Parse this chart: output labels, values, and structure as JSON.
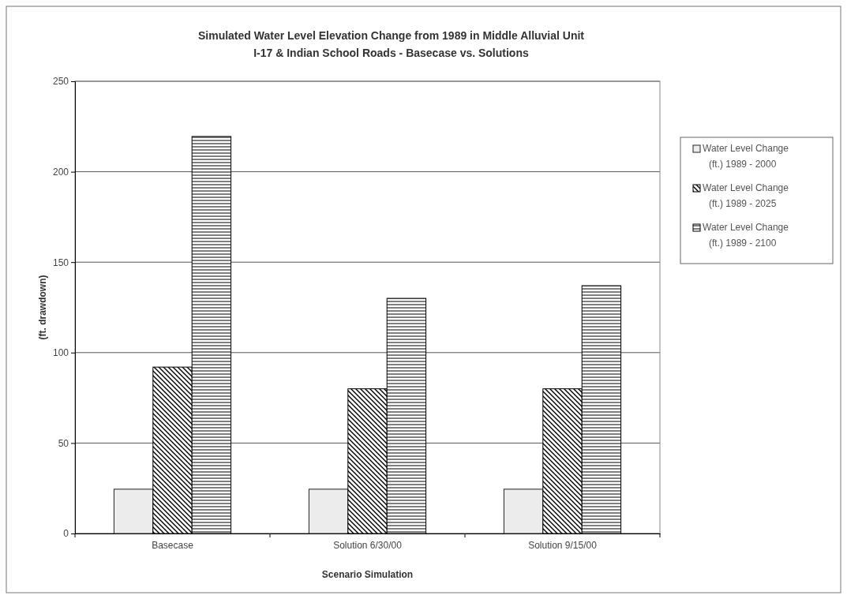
{
  "chart_data": {
    "type": "bar",
    "title": "Simulated Water Level Elevation Change from 1989 in Middle Alluvial Unit",
    "subtitle": "I-17 & Indian School Roads - Basecase vs. Solutions",
    "xlabel": "Scenario Simulation",
    "ylabel": "(ft. drawdown)",
    "categories": [
      "Basecase",
      "Solution 6/30/00",
      "Solution 9/15/00"
    ],
    "series": [
      {
        "name": "Water Level Change (ft.) 1989 - 2000",
        "color": "#ececec",
        "values": [
          24.5,
          24.5,
          24.5
        ]
      },
      {
        "name": "Water Level Change (ft.) 1989 - 2025",
        "color": "#000000",
        "values": [
          92,
          80,
          80
        ]
      },
      {
        "name": "Water Level Change (ft.) 1989 - 2100",
        "color": "#000000",
        "values": [
          219.5,
          130,
          137
        ]
      }
    ],
    "ylim": [
      0,
      250
    ],
    "yticks": [
      0,
      50,
      100,
      150,
      200,
      250
    ],
    "grid": "y",
    "legend": "right"
  }
}
